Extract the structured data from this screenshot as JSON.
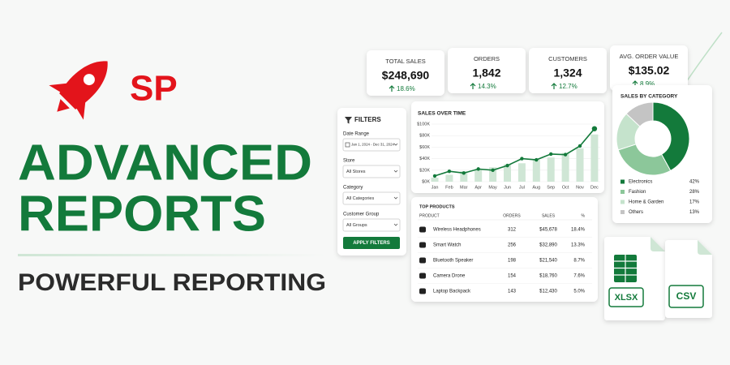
{
  "brand": "SP",
  "headline": [
    "ADVANCED",
    "REPORTS"
  ],
  "tagline": "POWERFUL REPORTING",
  "kpis": [
    {
      "label": "TOTAL SALES",
      "value": "$248,690",
      "change": "18.6%"
    },
    {
      "label": "ORDERS",
      "value": "1,842",
      "change": "14.3%"
    },
    {
      "label": "CUSTOMERS",
      "value": "1,324",
      "change": "12.7%"
    },
    {
      "label": "AVG. ORDER VALUE",
      "value": "$135.02",
      "change": "8.9%"
    }
  ],
  "filters": {
    "title": "FILTERS",
    "fields": [
      {
        "label": "Date Range",
        "value": "Jan 1, 2024 - Dec 31, 2024"
      },
      {
        "label": "Store",
        "value": "All Stores"
      },
      {
        "label": "Category",
        "value": "All Categories"
      },
      {
        "label": "Customer Group",
        "value": "All Groups"
      }
    ],
    "button": "APPLY FILTERS"
  },
  "table": {
    "title": "TOP PRODUCTS",
    "columns": [
      "PRODUCT",
      "ORDERS",
      "SALES",
      "%"
    ],
    "rows": [
      [
        "Wireless Headphones",
        "312",
        "$45,678",
        "18.4%"
      ],
      [
        "Smart Watch",
        "256",
        "$32,890",
        "13.3%"
      ],
      [
        "Bluetooth Speaker",
        "198",
        "$21,540",
        "8.7%"
      ],
      [
        "Camera Drone",
        "154",
        "$18,760",
        "7.6%"
      ],
      [
        "Laptop Backpack",
        "143",
        "$12,430",
        "5.0%"
      ]
    ]
  },
  "files": [
    "XLSX",
    "CSV"
  ],
  "chart_data": [
    {
      "type": "bar",
      "title": "SALES OVER TIME",
      "categories": [
        "Jan",
        "Feb",
        "Mar",
        "Apr",
        "May",
        "Jun",
        "Jul",
        "Aug",
        "Sep",
        "Oct",
        "Nov",
        "Dec"
      ],
      "series": [
        {
          "type": "bar",
          "color": "#cfe6d5",
          "values": [
            7,
            12,
            18,
            22,
            25,
            30,
            32,
            38,
            42,
            50,
            58,
            82
          ]
        },
        {
          "type": "line",
          "color": "#137a3b",
          "values": [
            10,
            18,
            15,
            22,
            20,
            28,
            40,
            38,
            48,
            47,
            62,
            92
          ]
        }
      ],
      "ylim": [
        0,
        100
      ],
      "yticks": [
        {
          "value": 0,
          "label": "$0K"
        },
        {
          "value": 20,
          "label": "$20K"
        },
        {
          "value": 40,
          "label": "$40K"
        },
        {
          "value": 60,
          "label": "$60K"
        },
        {
          "value": 80,
          "label": "$80K"
        },
        {
          "value": 100,
          "label": "$100K"
        }
      ]
    },
    {
      "type": "pie",
      "title": "SALES BY CATEGORY",
      "donut": true,
      "categories": [
        "Electronics",
        "Fashion",
        "Home & Garden",
        "Others"
      ],
      "values": [
        42,
        28,
        17,
        13
      ],
      "value_labels": [
        "42%",
        "28%",
        "17%",
        "13%"
      ],
      "colors": [
        "#137a3b",
        "#8cc79a",
        "#c5e3cc",
        "#c4c4c4"
      ]
    }
  ]
}
